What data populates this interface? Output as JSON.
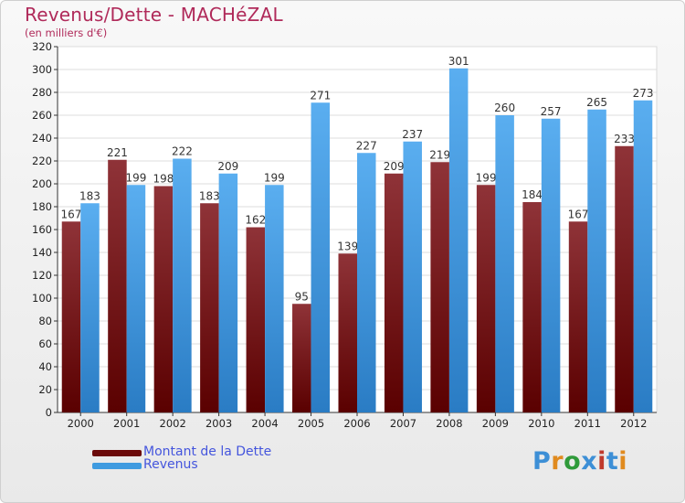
{
  "header": {
    "title": "Revenus/Dette - MACHéZAL",
    "subtitle": "(en milliers d'€)"
  },
  "legend": [
    {
      "label": "Montant de la Dette",
      "color": "#6b0a0a"
    },
    {
      "label": "Revenus",
      "color": "#3f9be0"
    }
  ],
  "logo": {
    "text": "Proxiti"
  },
  "chart_data": {
    "type": "bar",
    "categories": [
      "2000",
      "2001",
      "2002",
      "2003",
      "2004",
      "2005",
      "2006",
      "2007",
      "2008",
      "2009",
      "2010",
      "2011",
      "2012"
    ],
    "series": [
      {
        "name": "Montant de la Dette",
        "color": "#6b0a0a",
        "values": [
          167,
          221,
          198,
          183,
          162,
          95,
          139,
          209,
          219,
          199,
          184,
          167,
          233
        ]
      },
      {
        "name": "Revenus",
        "color": "#3f9be0",
        "values": [
          183,
          199,
          222,
          209,
          199,
          271,
          227,
          237,
          301,
          260,
          257,
          265,
          273
        ]
      }
    ],
    "ylim": [
      0,
      320
    ],
    "ytick_step": 20,
    "grid": true,
    "legend_position": "bottom-left",
    "data_labels": true
  }
}
